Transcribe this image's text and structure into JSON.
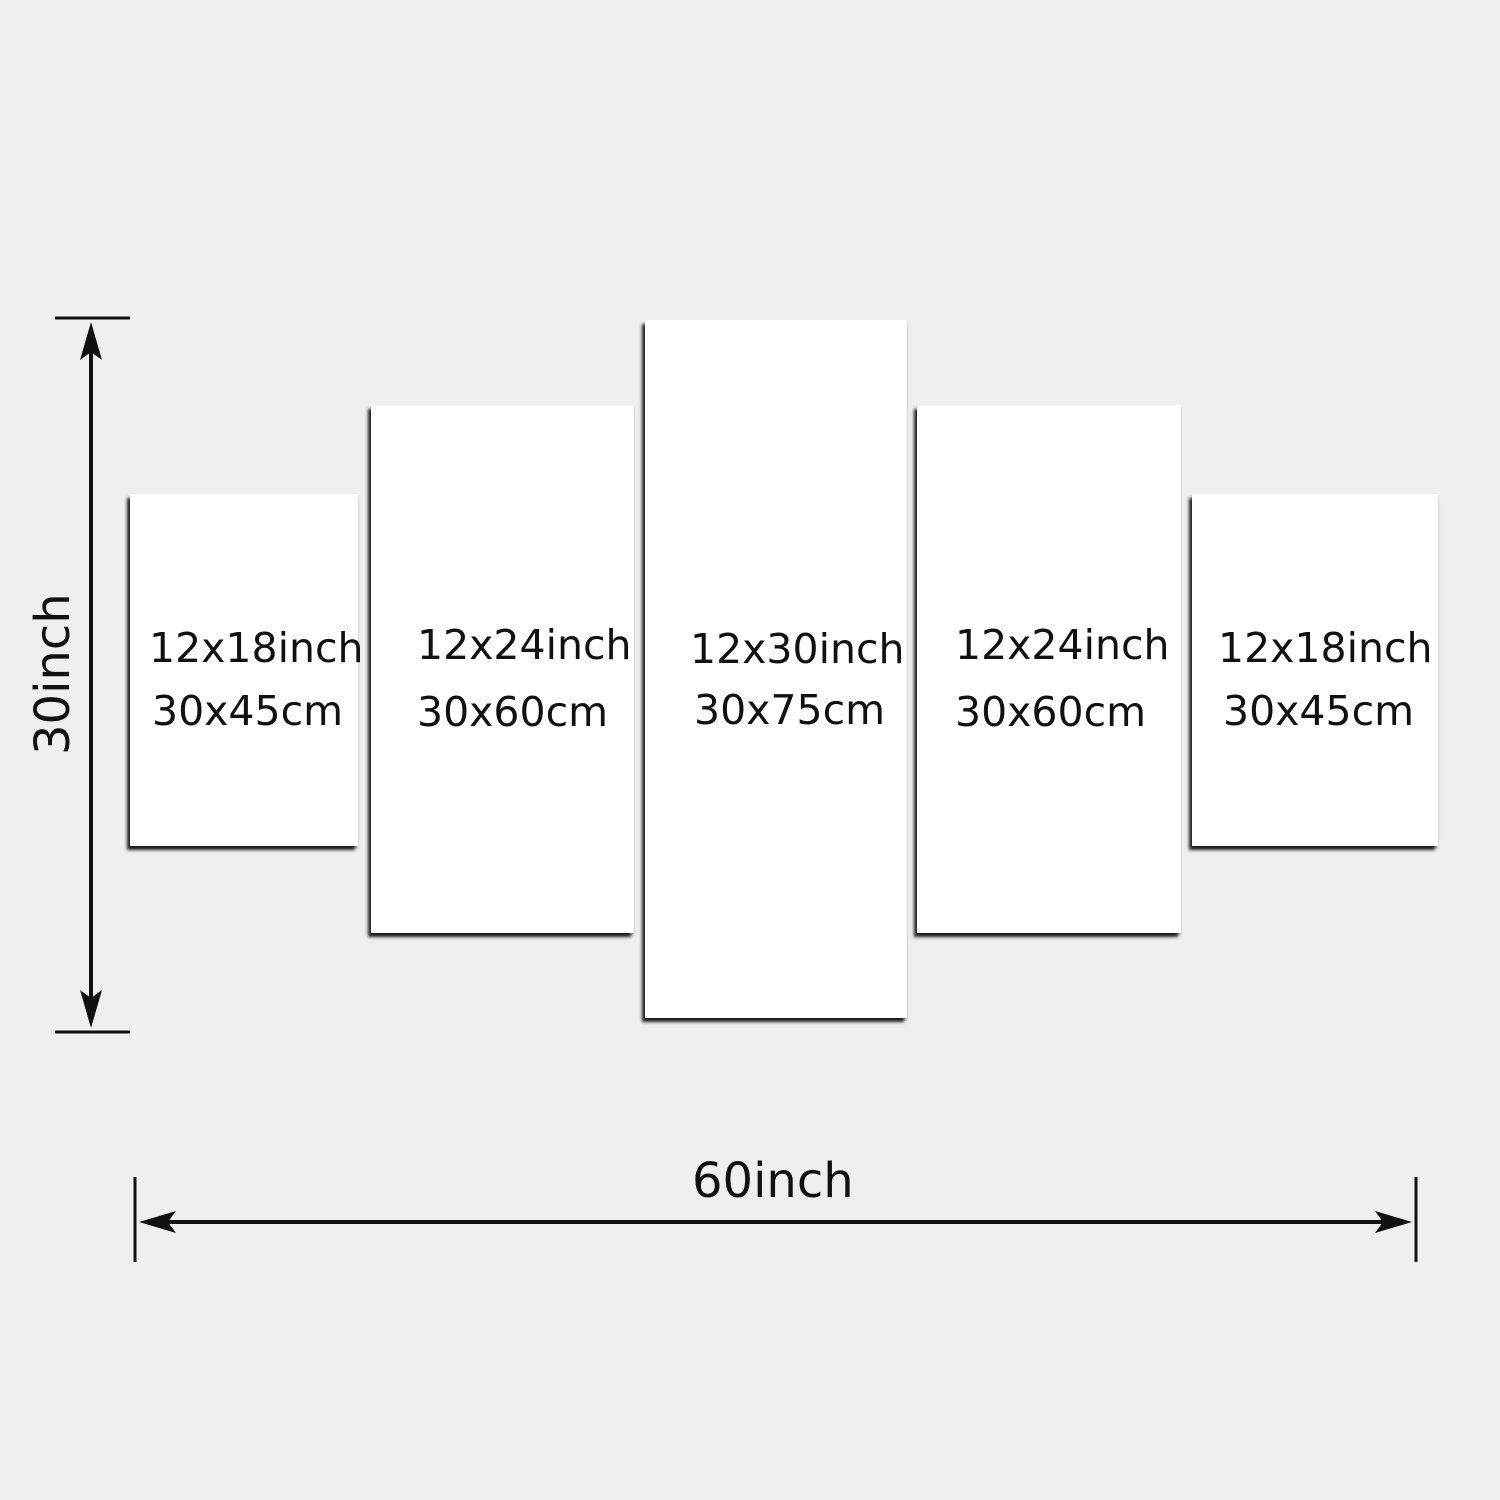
{
  "panels": [
    {
      "inch": "12x18inch",
      "cm": "30x45cm"
    },
    {
      "inch": "12x24inch",
      "cm": "30x60cm"
    },
    {
      "inch": "12x30inch",
      "cm": "30x75cm"
    },
    {
      "inch": "12x24inch",
      "cm": "30x60cm"
    },
    {
      "inch": "12x18inch",
      "cm": "30x45cm"
    }
  ],
  "dimensions": {
    "height_label": "30inch",
    "width_label": "60inch"
  },
  "colors": {
    "background": "#efefef",
    "panel": "#ffffff",
    "line": "#111111"
  }
}
